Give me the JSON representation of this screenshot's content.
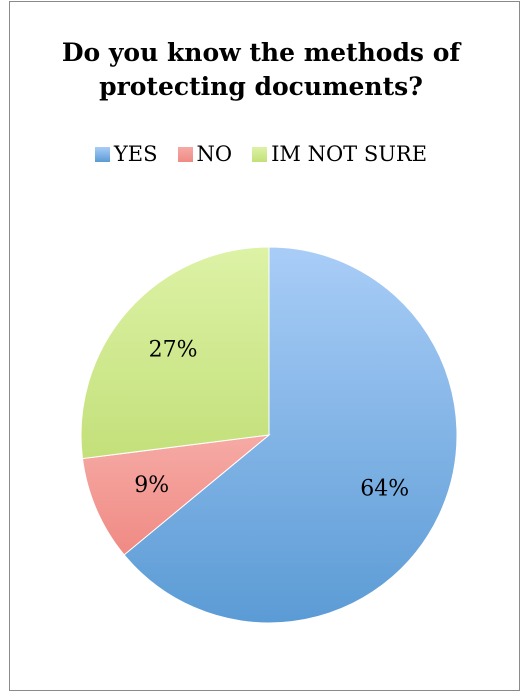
{
  "chart_data": {
    "type": "pie",
    "title_lines": [
      "Do you know the methods of",
      "protecting documents?"
    ],
    "legend_position": "top",
    "categories": [
      "YES",
      "NO",
      "IM NOT SURE"
    ],
    "values": [
      64,
      9,
      27
    ],
    "labels": [
      "64%",
      "9%",
      "27%"
    ],
    "colors": [
      "#5b9bd5",
      "#f08a84",
      "#c3e07a"
    ],
    "colors_light": [
      "#a9cdf7",
      "#f6aaa5",
      "#ddf2a6"
    ]
  }
}
